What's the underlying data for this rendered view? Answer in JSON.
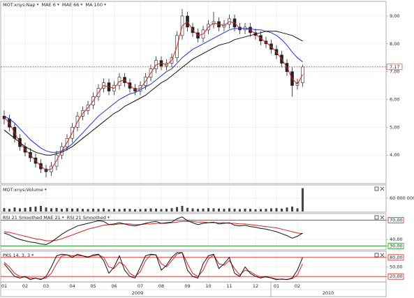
{
  "x_axis": {
    "categories": [
      "01",
      null,
      null,
      null,
      "02",
      null,
      null,
      null,
      "03",
      null,
      null,
      null,
      null,
      "04",
      null,
      null,
      null,
      "05",
      null,
      null,
      null,
      "06",
      null,
      null,
      null,
      null,
      "07",
      null,
      null,
      null,
      "08",
      null,
      null,
      null,
      null,
      "09",
      null,
      null,
      null,
      "10",
      null,
      null,
      null,
      "11",
      null,
      null,
      null,
      null,
      "12",
      null,
      null,
      null,
      "01",
      null,
      null,
      null,
      "02",
      null
    ],
    "years": [
      "2009",
      "2010"
    ]
  },
  "chart_data": [
    {
      "type": "candlestick",
      "title": "MOT:xnys:Nap",
      "ylim": [
        3.0,
        9.5
      ],
      "yticks": [
        {
          "value": 4,
          "label": "4,00"
        },
        {
          "value": 5,
          "label": "5,00"
        },
        {
          "value": 6,
          "label": "6,00"
        },
        {
          "value": 7,
          "label": "7,00"
        },
        {
          "value": 8,
          "label": "8,00"
        },
        {
          "value": 9,
          "label": "9,00"
        }
      ],
      "last_price": {
        "value": 7.17,
        "label": "7,17",
        "color": "#d62020"
      },
      "open": [
        5.4,
        5.3,
        5.0,
        4.6,
        4.3,
        4.1,
        3.9,
        3.7,
        3.5,
        3.4,
        3.6,
        4.0,
        4.3,
        4.6,
        5.0,
        5.4,
        5.6,
        5.8,
        6.1,
        6.4,
        6.6,
        6.3,
        6.5,
        6.8,
        6.6,
        6.4,
        6.3,
        6.5,
        6.8,
        7.1,
        7.4,
        7.2,
        7.3,
        7.5,
        8.3,
        9.0,
        8.6,
        8.4,
        8.2,
        8.5,
        8.7,
        8.8,
        8.6,
        8.7,
        8.9,
        8.6,
        8.5,
        8.6,
        8.4,
        8.3,
        8.1,
        8.0,
        7.8,
        7.6,
        7.3,
        7.0,
        6.5,
        6.6
      ],
      "high": [
        5.6,
        5.45,
        5.15,
        4.75,
        4.45,
        4.25,
        4.05,
        3.85,
        3.65,
        3.75,
        4.15,
        4.45,
        4.75,
        5.15,
        5.55,
        5.75,
        5.95,
        6.25,
        6.55,
        6.75,
        6.75,
        6.65,
        6.95,
        6.95,
        6.75,
        6.55,
        6.65,
        6.95,
        7.25,
        7.55,
        7.55,
        7.45,
        7.65,
        8.45,
        9.25,
        9.15,
        8.75,
        8.55,
        8.65,
        8.85,
        9.15,
        8.95,
        8.85,
        9.05,
        9.05,
        8.75,
        8.75,
        8.75,
        8.55,
        8.45,
        8.25,
        8.15,
        7.95,
        7.75,
        7.45,
        7.15,
        6.75,
        7.25
      ],
      "low": [
        5.1,
        4.85,
        4.45,
        4.15,
        3.95,
        3.75,
        3.55,
        3.35,
        3.2,
        3.25,
        3.45,
        3.85,
        4.15,
        4.45,
        4.85,
        5.25,
        5.45,
        5.65,
        5.95,
        6.25,
        6.15,
        6.15,
        6.35,
        6.45,
        6.25,
        6.15,
        6.15,
        6.35,
        6.65,
        6.95,
        7.05,
        7.05,
        7.15,
        7.35,
        8.15,
        8.45,
        8.25,
        8.05,
        8.05,
        8.35,
        8.55,
        8.45,
        8.45,
        8.55,
        8.45,
        8.35,
        8.35,
        8.25,
        8.15,
        7.95,
        7.85,
        7.65,
        7.45,
        7.15,
        6.85,
        6.1,
        6.35,
        6.45
      ],
      "close": [
        5.3,
        5.0,
        4.6,
        4.3,
        4.1,
        3.9,
        3.7,
        3.5,
        3.4,
        3.6,
        4.0,
        4.3,
        4.6,
        5.0,
        5.4,
        5.6,
        5.8,
        6.1,
        6.4,
        6.6,
        6.3,
        6.5,
        6.8,
        6.6,
        6.4,
        6.3,
        6.5,
        6.8,
        7.1,
        7.4,
        7.2,
        7.3,
        7.5,
        8.3,
        9.0,
        8.6,
        8.4,
        8.2,
        8.5,
        8.7,
        8.8,
        8.6,
        8.7,
        8.9,
        8.6,
        8.5,
        8.6,
        8.4,
        8.3,
        8.1,
        8.0,
        7.8,
        7.6,
        7.3,
        7.0,
        6.5,
        6.6,
        7.17
      ],
      "series": [
        {
          "name": "MAE 6",
          "color": "#d62020",
          "values": [
            5.35,
            5.15,
            4.8,
            4.45,
            4.2,
            4.0,
            3.8,
            3.6,
            3.45,
            3.5,
            3.8,
            4.15,
            4.45,
            4.8,
            5.2,
            5.5,
            5.7,
            5.95,
            6.25,
            6.5,
            6.45,
            6.4,
            6.65,
            6.7,
            6.5,
            6.35,
            6.4,
            6.65,
            6.95,
            7.25,
            7.3,
            7.25,
            7.4,
            7.9,
            8.65,
            8.8,
            8.5,
            8.3,
            8.35,
            8.6,
            8.75,
            8.7,
            8.65,
            8.8,
            8.75,
            8.55,
            8.55,
            8.5,
            8.35,
            8.2,
            8.05,
            7.9,
            7.7,
            7.45,
            7.15,
            6.75,
            6.55,
            6.9
          ]
        },
        {
          "name": "MAE 66",
          "color": "#2233cc",
          "values": [
            5.4,
            5.3,
            5.15,
            4.95,
            4.75,
            4.55,
            4.4,
            4.25,
            4.15,
            4.1,
            4.1,
            4.15,
            4.25,
            4.4,
            4.6,
            4.8,
            5.0,
            5.2,
            5.4,
            5.55,
            5.7,
            5.85,
            6.0,
            6.1,
            6.2,
            6.25,
            6.35,
            6.45,
            6.55,
            6.7,
            6.85,
            7.0,
            7.1,
            7.3,
            7.5,
            7.65,
            7.8,
            7.9,
            8.0,
            8.1,
            8.2,
            8.3,
            8.4,
            8.5,
            8.55,
            8.55,
            8.55,
            8.55,
            8.5,
            8.5,
            8.45,
            8.4,
            8.3,
            8.15,
            7.95,
            7.7,
            7.5,
            7.35
          ]
        },
        {
          "name": "MA 100",
          "color": "#111111",
          "values": [
            4.9,
            4.75,
            4.6,
            4.45,
            4.3,
            4.2,
            4.1,
            4.05,
            4.0,
            4.0,
            4.05,
            4.1,
            4.2,
            4.3,
            4.45,
            4.6,
            4.75,
            4.9,
            5.05,
            5.2,
            5.35,
            5.5,
            5.6,
            5.75,
            5.85,
            5.95,
            6.05,
            6.15,
            6.3,
            6.45,
            6.6,
            6.7,
            6.85,
            7.0,
            7.15,
            7.3,
            7.45,
            7.55,
            7.65,
            7.75,
            7.85,
            7.95,
            8.0,
            8.05,
            8.15,
            8.2,
            8.25,
            8.3,
            8.35,
            8.4,
            8.45,
            8.45,
            8.45,
            8.4,
            8.35,
            8.3,
            8.2,
            8.1
          ]
        }
      ]
    },
    {
      "type": "bar",
      "title": "MOT:xnys:Volume",
      "color": "#444444",
      "ylim": [
        0,
        110000000
      ],
      "yticks": [
        {
          "value": 60000000,
          "label": "60 000 000"
        }
      ],
      "values": [
        15000000,
        12000000,
        18000000,
        14000000,
        16000000,
        20000000,
        22000000,
        25000000,
        18000000,
        14000000,
        16000000,
        12000000,
        15000000,
        13000000,
        14000000,
        12000000,
        11000000,
        13000000,
        12000000,
        14000000,
        10000000,
        12000000,
        11000000,
        13000000,
        12000000,
        10000000,
        11000000,
        12000000,
        14000000,
        13000000,
        11000000,
        12000000,
        15000000,
        20000000,
        25000000,
        16000000,
        14000000,
        12000000,
        13000000,
        15000000,
        14000000,
        13000000,
        12000000,
        14000000,
        12000000,
        11000000,
        13000000,
        12000000,
        10000000,
        11000000,
        12000000,
        14000000,
        15000000,
        13000000,
        18000000,
        22000000,
        14000000,
        105000000
      ]
    },
    {
      "type": "line",
      "ylim": [
        25,
        78
      ],
      "yticks": [
        {
          "value": 30,
          "label": "30,00"
        },
        {
          "value": 40,
          "label": "40,00"
        },
        {
          "value": 70,
          "label": "70,00"
        }
      ],
      "levels": [
        {
          "value": 70,
          "color": "#d62020"
        },
        {
          "value": 30,
          "color": "#1a9a1a"
        }
      ],
      "series": [
        {
          "name": "RSI 21 Smoothed MAE 21",
          "color": "#d62020",
          "values": [
            52,
            51,
            49,
            47,
            45,
            43,
            41,
            40,
            38,
            38,
            39,
            41,
            44,
            47,
            50,
            53,
            56,
            58,
            60,
            62,
            63,
            63,
            64,
            64,
            64,
            63,
            63,
            64,
            64,
            65,
            65,
            65,
            66,
            67,
            68,
            68,
            68,
            67,
            67,
            66,
            66,
            66,
            66,
            65,
            65,
            64,
            64,
            63,
            62,
            61,
            60,
            59,
            58,
            56,
            54,
            52,
            50,
            49
          ]
        },
        {
          "name": "RSI 21 Smoothed",
          "color": "#111111",
          "values": [
            50,
            47,
            43,
            40,
            38,
            36,
            35,
            33,
            32,
            36,
            42,
            48,
            53,
            57,
            61,
            63,
            65,
            67,
            69,
            68,
            63,
            64,
            66,
            64,
            62,
            61,
            63,
            65,
            67,
            68,
            65,
            66,
            67,
            72,
            75,
            69,
            66,
            63,
            65,
            66,
            67,
            64,
            65,
            66,
            62,
            61,
            62,
            60,
            59,
            57,
            56,
            54,
            52,
            49,
            46,
            42,
            45,
            50
          ]
        }
      ]
    },
    {
      "type": "line",
      "title": "PKS 14, 3, 3",
      "ylim": [
        5,
        95
      ],
      "yticks": [
        {
          "value": 20,
          "label": "20,00"
        },
        {
          "value": 50,
          "label": "50,00"
        },
        {
          "value": 80,
          "label": "80,00"
        }
      ],
      "levels": [
        {
          "value": 80,
          "color": "#d62020"
        },
        {
          "value": 20,
          "color": "#d62020"
        }
      ],
      "series": [
        {
          "color": "#d62020",
          "values": [
            65,
            50,
            30,
            20,
            18,
            15,
            14,
            12,
            15,
            30,
            60,
            85,
            88,
            85,
            86,
            85,
            82,
            85,
            88,
            80,
            50,
            45,
            65,
            55,
            30,
            20,
            35,
            70,
            88,
            88,
            60,
            50,
            70,
            90,
            95,
            60,
            30,
            20,
            40,
            75,
            88,
            60,
            55,
            70,
            45,
            25,
            40,
            35,
            25,
            18,
            18,
            16,
            12,
            11,
            11,
            13,
            25,
            60
          ]
        },
        {
          "color": "#111111",
          "values": [
            60,
            40,
            20,
            15,
            20,
            10,
            15,
            10,
            20,
            50,
            85,
            90,
            88,
            80,
            90,
            85,
            80,
            88,
            90,
            70,
            30,
            50,
            85,
            40,
            20,
            15,
            50,
            85,
            90,
            88,
            40,
            55,
            80,
            95,
            95,
            40,
            20,
            15,
            60,
            85,
            90,
            45,
            60,
            80,
            30,
            20,
            50,
            30,
            20,
            15,
            20,
            15,
            10,
            12,
            10,
            15,
            40,
            80
          ]
        }
      ]
    }
  ]
}
